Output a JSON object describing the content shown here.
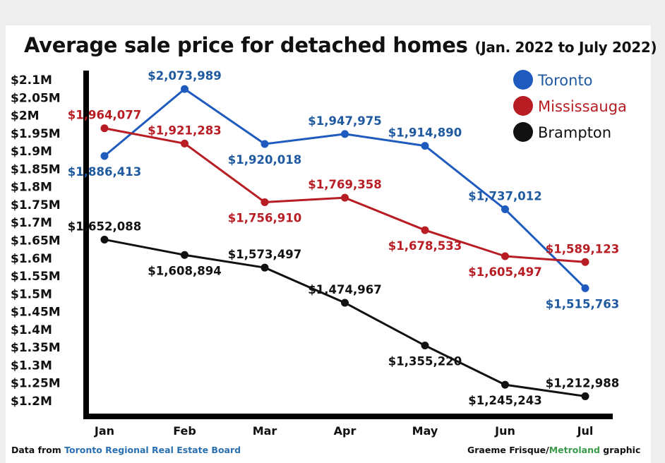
{
  "chart_data": {
    "type": "line",
    "title": "Average sale price for detached homes",
    "subtitle": "(Jan. 2022 to July 2022)",
    "categories": [
      "Jan",
      "Feb",
      "Mar",
      "Apr",
      "May",
      "Jun",
      "Jul"
    ],
    "ylim": [
      1200000,
      2100000
    ],
    "y_ticks": [
      {
        "value": 2100000,
        "label": "$2.1M"
      },
      {
        "value": 2050000,
        "label": "$2.05M"
      },
      {
        "value": 2000000,
        "label": "$2M"
      },
      {
        "value": 1950000,
        "label": "$1.95M"
      },
      {
        "value": 1900000,
        "label": "$1.9M"
      },
      {
        "value": 1850000,
        "label": "$1.85M"
      },
      {
        "value": 1800000,
        "label": "$1.8M"
      },
      {
        "value": 1750000,
        "label": "$1.75M"
      },
      {
        "value": 1700000,
        "label": "$1.7M"
      },
      {
        "value": 1650000,
        "label": "$1.65M"
      },
      {
        "value": 1600000,
        "label": "$1.6M"
      },
      {
        "value": 1550000,
        "label": "$1.55M"
      },
      {
        "value": 1500000,
        "label": "$1.5M"
      },
      {
        "value": 1450000,
        "label": "$1.45M"
      },
      {
        "value": 1400000,
        "label": "$1.4M"
      },
      {
        "value": 1350000,
        "label": "$1.35M"
      },
      {
        "value": 1300000,
        "label": "$1.3M"
      },
      {
        "value": 1250000,
        "label": "$1.25M"
      },
      {
        "value": 1200000,
        "label": "$1.2M"
      }
    ],
    "grid": false,
    "legend_position": "top-right",
    "series": [
      {
        "name": "Toronto",
        "color": "#1f5bbf",
        "label_color": "#1f5aa0",
        "values": [
          1886413,
          2073989,
          1920018,
          1947975,
          1914890,
          1737012,
          1515763
        ],
        "labels": [
          "$1,886,413",
          "$2,073,989",
          "$1,920,018",
          "$1,947,975",
          "$1,914,890",
          "$1,737,012",
          "$1,515,763"
        ],
        "label_side": [
          "below",
          "above",
          "below",
          "above",
          "above",
          "above",
          "below"
        ]
      },
      {
        "name": "Mississauga",
        "color": "#b81d24",
        "label_color": "#b81d24",
        "values": [
          1964077,
          1921283,
          1756910,
          1769358,
          1678533,
          1605497,
          1589123
        ],
        "labels": [
          "$1,964,077",
          "$1,921,283",
          "$1,756,910",
          "$1,769,358",
          "$1,678,533",
          "$1,605,497",
          "$1,589,123"
        ],
        "label_side": [
          "above",
          "above",
          "below",
          "above",
          "below",
          "below",
          "above"
        ]
      },
      {
        "name": "Brampton",
        "color": "#111111",
        "label_color": "#111111",
        "values": [
          1652088,
          1608894,
          1573497,
          1474967,
          1355220,
          1245243,
          1212988
        ],
        "labels": [
          "$1,652,088",
          "$1,608,894",
          "$1,573,497",
          "$1,474,967",
          "$1,355,220",
          "$1,245,243",
          "$1,212,988"
        ],
        "label_side": [
          "above",
          "below",
          "above",
          "above",
          "below",
          "below",
          "above"
        ]
      }
    ]
  },
  "footer": {
    "source_prefix": "Data from ",
    "source_org": "Toronto Regional Real Estate Board",
    "credit_author": "Graeme Frisque/",
    "credit_org": "Metroland",
    "credit_suffix": " graphic"
  }
}
